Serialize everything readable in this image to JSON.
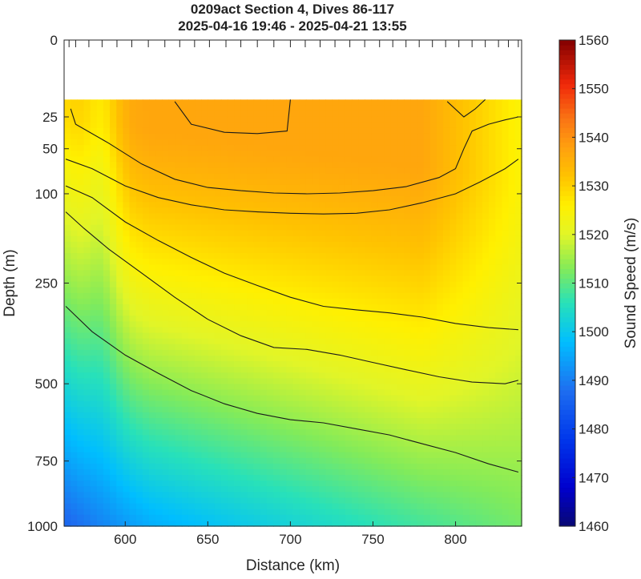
{
  "chart_data": {
    "type": "heatmap",
    "title": "0209act Section 4, Dives 86-117",
    "subtitle": "2025-04-16 19:46 - 2025-04-21 13:55",
    "xlabel": "Distance (km)",
    "ylabel": "Depth (m)",
    "xlim": [
      563,
      840
    ],
    "ylim": [
      0,
      1000
    ],
    "y_scale": "sqrt",
    "y_reversed": true,
    "x_ticks": [
      "600",
      "650",
      "700",
      "750",
      "800"
    ],
    "y_ticks": [
      "0",
      "25",
      "50",
      "100",
      "250",
      "500",
      "750",
      "1000"
    ],
    "colorbar": {
      "label": "Sound Speed (m/s)",
      "range": [
        1460,
        1560
      ],
      "ticks": [
        "1460",
        "1470",
        "1480",
        "1490",
        "1500",
        "1510",
        "1520",
        "1530",
        "1540",
        "1550",
        "1560"
      ]
    },
    "data_min_depth": 15,
    "dive_positions": [
      566,
      570,
      578,
      586,
      595,
      604,
      614,
      624,
      633,
      642,
      651,
      661,
      670,
      680,
      690,
      700,
      709,
      718,
      727,
      736,
      745,
      754,
      762,
      770,
      778,
      786,
      794,
      802,
      810,
      818,
      826,
      832,
      838
    ],
    "contours": [
      {
        "level": 1530,
        "points": [
          [
            567,
            20
          ],
          [
            570,
            30
          ],
          [
            590,
            45
          ],
          [
            610,
            65
          ],
          [
            630,
            82
          ],
          [
            650,
            92
          ],
          [
            670,
            96
          ],
          [
            690,
            99
          ],
          [
            710,
            100
          ],
          [
            730,
            99
          ],
          [
            750,
            96
          ],
          [
            770,
            91
          ],
          [
            790,
            80
          ],
          [
            800,
            70
          ],
          [
            805,
            50
          ],
          [
            810,
            35
          ],
          [
            820,
            30
          ],
          [
            830,
            27
          ],
          [
            838,
            25
          ]
        ]
      },
      {
        "level": 1530,
        "points": [
          [
            630,
            16
          ],
          [
            640,
            30
          ],
          [
            660,
            36
          ],
          [
            680,
            37
          ],
          [
            698,
            35
          ],
          [
            700,
            15
          ]
        ]
      },
      {
        "level": 1530,
        "points": [
          [
            795,
            16
          ],
          [
            805,
            25
          ],
          [
            812,
            20
          ],
          [
            818,
            15
          ]
        ]
      },
      {
        "level": 1525,
        "points": [
          [
            564,
            60
          ],
          [
            580,
            70
          ],
          [
            600,
            90
          ],
          [
            620,
            105
          ],
          [
            640,
            115
          ],
          [
            660,
            122
          ],
          [
            680,
            125
          ],
          [
            700,
            127
          ],
          [
            720,
            128
          ],
          [
            740,
            127
          ],
          [
            760,
            122
          ],
          [
            780,
            112
          ],
          [
            800,
            100
          ],
          [
            815,
            85
          ],
          [
            830,
            70
          ],
          [
            838,
            60
          ]
        ]
      },
      {
        "level": 1520,
        "points": [
          [
            564,
            90
          ],
          [
            580,
            105
          ],
          [
            600,
            140
          ],
          [
            620,
            170
          ],
          [
            640,
            200
          ],
          [
            660,
            230
          ],
          [
            680,
            255
          ],
          [
            700,
            280
          ],
          [
            720,
            300
          ],
          [
            740,
            308
          ],
          [
            760,
            315
          ],
          [
            780,
            325
          ],
          [
            800,
            340
          ],
          [
            820,
            350
          ],
          [
            838,
            355
          ]
        ]
      },
      {
        "level": 1515,
        "points": [
          [
            564,
            125
          ],
          [
            575,
            150
          ],
          [
            590,
            185
          ],
          [
            610,
            230
          ],
          [
            630,
            280
          ],
          [
            650,
            330
          ],
          [
            670,
            370
          ],
          [
            690,
            400
          ],
          [
            710,
            405
          ],
          [
            730,
            420
          ],
          [
            750,
            440
          ],
          [
            770,
            460
          ],
          [
            790,
            480
          ],
          [
            810,
            495
          ],
          [
            830,
            500
          ],
          [
            838,
            490
          ]
        ]
      },
      {
        "level": 1510,
        "points": [
          [
            564,
            300
          ],
          [
            580,
            360
          ],
          [
            600,
            420
          ],
          [
            620,
            470
          ],
          [
            640,
            520
          ],
          [
            660,
            560
          ],
          [
            680,
            590
          ],
          [
            700,
            610
          ],
          [
            720,
            620
          ],
          [
            740,
            640
          ],
          [
            760,
            660
          ],
          [
            780,
            690
          ],
          [
            800,
            720
          ],
          [
            820,
            760
          ],
          [
            838,
            790
          ]
        ]
      }
    ]
  }
}
